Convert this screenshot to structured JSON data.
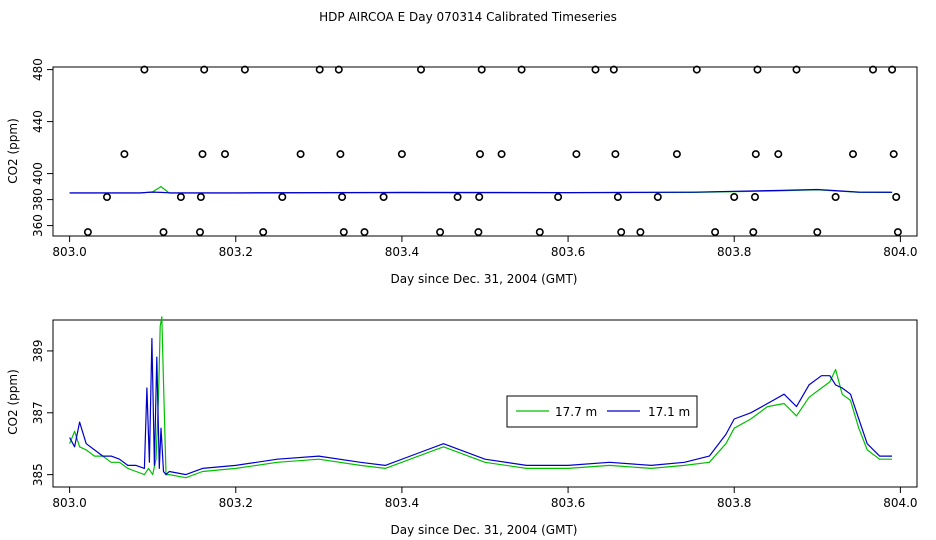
{
  "title": "HDP AIRCOA E  Day 070314  Calibrated Timeseries",
  "chart_data": [
    {
      "type": "scatter",
      "xlabel": "Day since Dec. 31, 2004 (GMT)",
      "ylabel": "CO2 (ppm)",
      "xlim": [
        802.98,
        804.02
      ],
      "ylim": [
        352,
        482
      ],
      "xticks": [
        "803.0",
        "803.2",
        "803.4",
        "803.6",
        "803.8",
        "804.0"
      ],
      "yticks": [
        "360",
        "380",
        "400",
        "440",
        "480"
      ],
      "ytick_values": [
        360,
        380,
        400,
        440,
        480
      ],
      "xtick_values": [
        803.0,
        803.2,
        803.4,
        803.6,
        803.8,
        804.0
      ],
      "grid": false,
      "calibration_points": [
        [
          803.09,
          480
        ],
        [
          803.162,
          480
        ],
        [
          803.211,
          480
        ],
        [
          803.301,
          480
        ],
        [
          803.324,
          480
        ],
        [
          803.423,
          480
        ],
        [
          803.496,
          480
        ],
        [
          803.544,
          480
        ],
        [
          803.633,
          480
        ],
        [
          803.655,
          480
        ],
        [
          803.755,
          480
        ],
        [
          803.828,
          480
        ],
        [
          803.875,
          480
        ],
        [
          803.967,
          480
        ],
        [
          803.99,
          480
        ],
        [
          803.066,
          415
        ],
        [
          803.16,
          415
        ],
        [
          803.187,
          415
        ],
        [
          803.278,
          415
        ],
        [
          803.326,
          415
        ],
        [
          803.4,
          415
        ],
        [
          803.494,
          415
        ],
        [
          803.52,
          415
        ],
        [
          803.61,
          415
        ],
        [
          803.657,
          415
        ],
        [
          803.731,
          415
        ],
        [
          803.826,
          415
        ],
        [
          803.853,
          415
        ],
        [
          803.943,
          415
        ],
        [
          803.992,
          415
        ],
        [
          803.045,
          382
        ],
        [
          803.134,
          382
        ],
        [
          803.158,
          382
        ],
        [
          803.256,
          382
        ],
        [
          803.328,
          382
        ],
        [
          803.378,
          382
        ],
        [
          803.467,
          382
        ],
        [
          803.493,
          382
        ],
        [
          803.588,
          382
        ],
        [
          803.66,
          382
        ],
        [
          803.708,
          382
        ],
        [
          803.8,
          382
        ],
        [
          803.825,
          382
        ],
        [
          803.922,
          382
        ],
        [
          803.995,
          382
        ],
        [
          803.022,
          355
        ],
        [
          803.113,
          355
        ],
        [
          803.157,
          355
        ],
        [
          803.233,
          355
        ],
        [
          803.33,
          355
        ],
        [
          803.355,
          355
        ],
        [
          803.446,
          355
        ],
        [
          803.492,
          355
        ],
        [
          803.566,
          355
        ],
        [
          803.664,
          355
        ],
        [
          803.687,
          355
        ],
        [
          803.777,
          355
        ],
        [
          803.823,
          355
        ],
        [
          803.9,
          355
        ],
        [
          803.997,
          355
        ]
      ],
      "series": [
        {
          "name": "17.7 m",
          "color": "#00c000",
          "x": [
            803.0,
            803.05,
            803.085,
            803.1,
            803.11,
            803.12,
            803.2,
            803.4,
            803.6,
            803.75,
            803.85,
            803.9,
            803.95,
            803.99
          ],
          "values": [
            385,
            385,
            385,
            386,
            390,
            385,
            385,
            385.2,
            385.3,
            385.5,
            386.7,
            387.5,
            385.6,
            385.5
          ]
        },
        {
          "name": "17.1 m",
          "color": "#0000cc",
          "x": [
            803.0,
            803.05,
            803.085,
            803.1,
            803.11,
            803.12,
            803.2,
            803.4,
            803.6,
            803.75,
            803.85,
            803.9,
            803.95,
            803.99
          ],
          "values": [
            385.2,
            385.2,
            385.2,
            385.8,
            385.5,
            385.2,
            385.2,
            385.5,
            385.4,
            385.7,
            387,
            387.8,
            385.8,
            385.6
          ]
        }
      ]
    },
    {
      "type": "line",
      "xlabel": "Day since Dec. 31, 2004 (GMT)",
      "ylabel": "CO2 (ppm)",
      "xlim": [
        802.98,
        804.02
      ],
      "ylim": [
        384.6,
        390.0
      ],
      "xticks": [
        "803.0",
        "803.2",
        "803.4",
        "803.6",
        "803.8",
        "804.0"
      ],
      "xtick_values": [
        803.0,
        803.2,
        803.4,
        803.6,
        803.8,
        804.0
      ],
      "yticks": [
        "385",
        "387",
        "389"
      ],
      "ytick_values": [
        385,
        387,
        389
      ],
      "grid": false,
      "legend": "upper-right-center",
      "series": [
        {
          "name": "17.7 m",
          "color": "#00c000",
          "x": [
            803.0,
            803.006,
            803.012,
            803.02,
            803.03,
            803.04,
            803.05,
            803.06,
            803.07,
            803.08,
            803.09,
            803.095,
            803.1,
            803.104,
            803.107,
            803.109,
            803.111,
            803.113,
            803.116,
            803.12,
            803.14,
            803.16,
            803.2,
            803.25,
            803.3,
            803.35,
            803.38,
            803.42,
            803.45,
            803.5,
            803.55,
            803.6,
            803.65,
            803.7,
            803.74,
            803.77,
            803.79,
            803.8,
            803.82,
            803.84,
            803.86,
            803.875,
            803.89,
            803.905,
            803.915,
            803.922,
            803.93,
            803.94,
            803.95,
            803.96,
            803.975,
            803.99
          ],
          "values": [
            386.0,
            386.4,
            385.9,
            385.8,
            385.6,
            385.6,
            385.4,
            385.4,
            385.2,
            385.1,
            385.0,
            385.2,
            385.0,
            385.5,
            387.5,
            389.8,
            390.1,
            388.0,
            385.0,
            385.0,
            384.9,
            385.1,
            385.2,
            385.4,
            385.5,
            385.3,
            385.2,
            385.6,
            385.9,
            385.4,
            385.2,
            385.2,
            385.3,
            385.2,
            385.3,
            385.4,
            386.0,
            386.5,
            386.8,
            387.2,
            387.3,
            386.9,
            387.5,
            387.8,
            388.0,
            388.4,
            387.6,
            387.4,
            386.5,
            385.8,
            385.5,
            385.5
          ]
        },
        {
          "name": "17.1 m",
          "color": "#0000cc",
          "x": [
            803.0,
            803.006,
            803.012,
            803.02,
            803.03,
            803.04,
            803.05,
            803.06,
            803.07,
            803.08,
            803.09,
            803.093,
            803.096,
            803.099,
            803.102,
            803.105,
            803.108,
            803.11,
            803.113,
            803.116,
            803.12,
            803.14,
            803.16,
            803.2,
            803.25,
            803.3,
            803.35,
            803.38,
            803.42,
            803.45,
            803.5,
            803.55,
            803.6,
            803.65,
            803.7,
            803.74,
            803.77,
            803.79,
            803.8,
            803.82,
            803.84,
            803.86,
            803.875,
            803.89,
            803.905,
            803.915,
            803.922,
            803.93,
            803.94,
            803.95,
            803.96,
            803.975,
            803.99
          ],
          "values": [
            386.2,
            385.9,
            386.7,
            386.0,
            385.8,
            385.6,
            385.6,
            385.5,
            385.3,
            385.3,
            385.2,
            387.8,
            385.4,
            389.4,
            385.3,
            388.8,
            385.2,
            386.5,
            385.1,
            385.0,
            385.1,
            385.0,
            385.2,
            385.3,
            385.5,
            385.6,
            385.4,
            385.3,
            385.7,
            386.0,
            385.5,
            385.3,
            385.3,
            385.4,
            385.3,
            385.4,
            385.6,
            386.3,
            386.8,
            387.0,
            387.3,
            387.6,
            387.2,
            387.9,
            388.2,
            388.2,
            387.9,
            387.8,
            387.6,
            386.8,
            386.0,
            385.6,
            385.6
          ]
        }
      ]
    }
  ]
}
